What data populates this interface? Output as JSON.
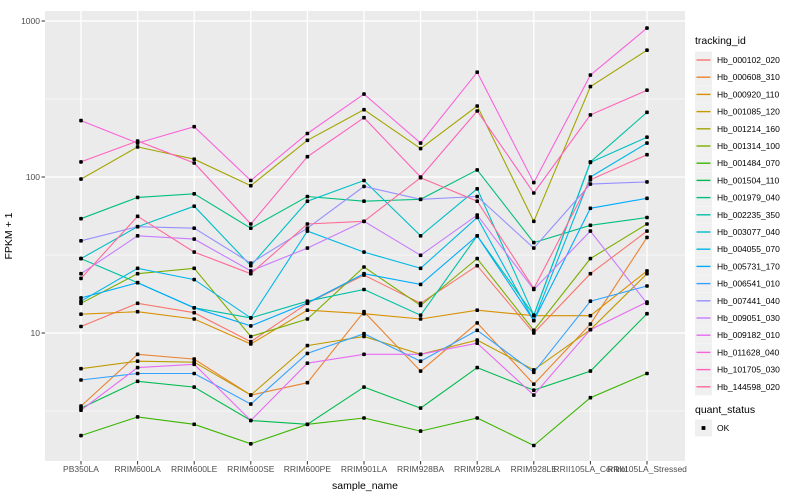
{
  "chart_data": {
    "type": "line",
    "title": "",
    "xlabel": "sample_name",
    "ylabel": "FPKM + 1",
    "y_scale": "log10",
    "ylim": [
      1.5,
      1200
    ],
    "y_ticks": [
      10,
      100,
      1000
    ],
    "y_tick_labels": [
      "10",
      "100",
      "1000"
    ],
    "y_minor_ticks": [
      3.16,
      31.6,
      316
    ],
    "grid": true,
    "panel_bg": "#EBEBEB",
    "grid_color": "#FFFFFF",
    "legend_key_bg": "#F0F0F0",
    "point_color": "#000000",
    "legend_position": "right",
    "legend_title": "tracking_id",
    "legend2_title": "quant_status",
    "legend2_items": [
      {
        "label": "OK",
        "marker": "square",
        "color": "#000000"
      }
    ],
    "x_categories": [
      "PB350LA",
      "RRIM600LA",
      "RRIM600LE",
      "RRIM600SE",
      "RRIM600PE",
      "RRIM901LA",
      "RRIM928BA",
      "RRIM928LA",
      "RRIM928LE",
      "RRII105LA_Control",
      "RRII105LA_Stressed"
    ],
    "series": [
      {
        "name": "Hb_000102_020",
        "color": "#F8766D",
        "values": [
          11,
          15.5,
          13.5,
          8.8,
          15.5,
          23.5,
          15.5,
          27,
          10,
          24,
          45
        ]
      },
      {
        "name": "Hb_000608_310",
        "color": "#EA8331",
        "values": [
          3.4,
          7.3,
          6.8,
          4.0,
          4.8,
          13.7,
          5.7,
          11.6,
          4.7,
          11.4,
          41
        ]
      },
      {
        "name": "Hb_000920_110",
        "color": "#D89000",
        "values": [
          13.2,
          13.7,
          12.3,
          8.5,
          14,
          13.3,
          12.3,
          14,
          12.9,
          12.9,
          25
        ]
      },
      {
        "name": "Hb_001085_120",
        "color": "#C09B00",
        "values": [
          5.9,
          6.6,
          6.5,
          4.0,
          8.3,
          9.5,
          7.3,
          9.0,
          5.8,
          10.5,
          24
        ]
      },
      {
        "name": "Hb_001214_160",
        "color": "#A3A500",
        "values": [
          97,
          156,
          130,
          88,
          172,
          270,
          152,
          285,
          52,
          380,
          650
        ]
      },
      {
        "name": "Hb_001314_100",
        "color": "#7CAE00",
        "values": [
          15.5,
          24,
          26,
          9.5,
          12.3,
          26.5,
          15,
          30,
          10.4,
          30,
          50
        ]
      },
      {
        "name": "Hb_001484_070",
        "color": "#39B600",
        "values": [
          2.2,
          2.9,
          2.6,
          1.95,
          2.6,
          2.85,
          2.35,
          2.85,
          1.9,
          3.85,
          5.5
        ]
      },
      {
        "name": "Hb_001504_110",
        "color": "#00BB4E",
        "values": [
          3.3,
          4.9,
          4.5,
          2.75,
          2.6,
          4.5,
          3.3,
          6.0,
          4.3,
          5.7,
          13.3
        ]
      },
      {
        "name": "Hb_001979_040",
        "color": "#00BF7D",
        "values": [
          54,
          74,
          78,
          47,
          75,
          70,
          72,
          111,
          38,
          49,
          55
        ]
      },
      {
        "name": "Hb_002235_350",
        "color": "#00C1A3",
        "values": [
          30,
          21,
          14.5,
          12.5,
          16,
          19,
          13,
          42,
          13,
          125,
          260
        ]
      },
      {
        "name": "Hb_003077_040",
        "color": "#00BFC4",
        "values": [
          30,
          48,
          65,
          27,
          70,
          95,
          42,
          84,
          13,
          124,
          180
        ]
      },
      {
        "name": "Hb_004055_070",
        "color": "#00B8E5",
        "values": [
          16,
          26,
          22,
          12.5,
          45,
          33,
          26,
          55,
          12,
          100,
          165
        ]
      },
      {
        "name": "Hb_005731_170",
        "color": "#00ACFC",
        "values": [
          16.8,
          21,
          14.5,
          11.1,
          15.6,
          24,
          20.5,
          42,
          12,
          63,
          73
        ]
      },
      {
        "name": "Hb_006541_010",
        "color": "#35A2FF",
        "values": [
          5.0,
          5.5,
          5.5,
          3.5,
          7.4,
          9.9,
          6.6,
          10.4,
          5.6,
          16,
          20
        ]
      },
      {
        "name": "Hb_007441_040",
        "color": "#9590FF",
        "values": [
          39,
          48,
          47,
          28,
          47,
          87,
          72,
          75,
          35,
          90,
          93
        ]
      },
      {
        "name": "Hb_009051_030",
        "color": "#C77CFF",
        "values": [
          24,
          42,
          40,
          25,
          35,
          52,
          31.5,
          57,
          19,
          45,
          15.5
        ]
      },
      {
        "name": "Hb_009182_010",
        "color": "#E76BF3",
        "values": [
          3.2,
          6.0,
          6.3,
          2.75,
          6.4,
          7.3,
          7.3,
          8.6,
          4.0,
          10.5,
          15.8
        ]
      },
      {
        "name": "Hb_011628_040",
        "color": "#FA62DB",
        "values": [
          230,
          165,
          210,
          95,
          190,
          340,
          165,
          470,
          92,
          450,
          900
        ]
      },
      {
        "name": "Hb_101705_030",
        "color": "#FF62BC",
        "values": [
          125,
          170,
          123,
          50,
          135,
          240,
          100,
          265,
          79,
          250,
          360
        ]
      },
      {
        "name": "Hb_144598_020",
        "color": "#FF6A98",
        "values": [
          22.4,
          56,
          33,
          24,
          50,
          52,
          99,
          70,
          19.3,
          96,
          139
        ]
      }
    ]
  }
}
